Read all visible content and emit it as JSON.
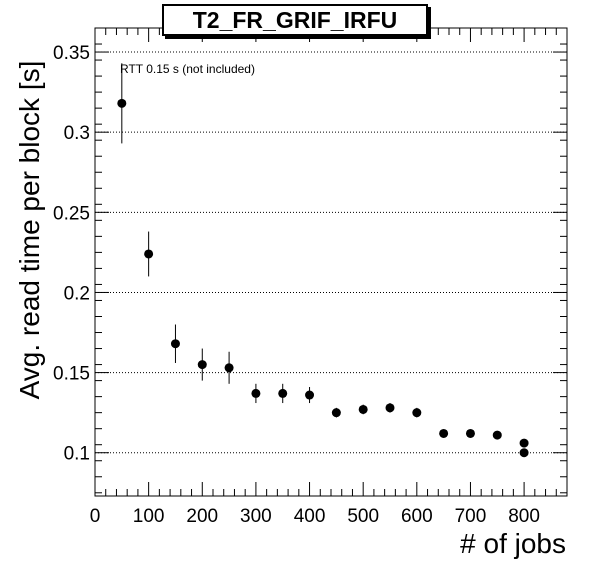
{
  "chart_data": {
    "type": "scatter",
    "title": "T2_FR_GRIF_IRFU",
    "xlabel": "# of jobs",
    "ylabel": "Avg. read time per block [s]",
    "annotation": "RTT 0.15 s (not included)",
    "xlim": [
      0,
      880
    ],
    "ylim": [
      0.073,
      0.365
    ],
    "x_ticks": [
      "0",
      "100",
      "200",
      "300",
      "400",
      "500",
      "600",
      "700",
      "800"
    ],
    "y_ticks": [
      "0.1",
      "0.15",
      "0.2",
      "0.25",
      "0.3",
      "0.35"
    ],
    "grid": "horizontal-dotted",
    "points": [
      {
        "x": 50,
        "y": 0.318,
        "err": 0.025
      },
      {
        "x": 100,
        "y": 0.224,
        "err": 0.014
      },
      {
        "x": 150,
        "y": 0.168,
        "err": 0.012
      },
      {
        "x": 200,
        "y": 0.155,
        "err": 0.01
      },
      {
        "x": 250,
        "y": 0.153,
        "err": 0.01
      },
      {
        "x": 300,
        "y": 0.137,
        "err": 0.006
      },
      {
        "x": 350,
        "y": 0.137,
        "err": 0.006
      },
      {
        "x": 400,
        "y": 0.136,
        "err": 0.005
      },
      {
        "x": 450,
        "y": 0.125,
        "err": 0.003
      },
      {
        "x": 500,
        "y": 0.127,
        "err": 0.003
      },
      {
        "x": 550,
        "y": 0.128,
        "err": 0.003
      },
      {
        "x": 600,
        "y": 0.125,
        "err": 0.003
      },
      {
        "x": 650,
        "y": 0.112,
        "err": 0.002
      },
      {
        "x": 700,
        "y": 0.112,
        "err": 0.002
      },
      {
        "x": 750,
        "y": 0.111,
        "err": 0.002
      },
      {
        "x": 800,
        "y": 0.106,
        "err": 0.002
      },
      {
        "x": 800,
        "y": 0.1,
        "err": 0.002
      }
    ]
  }
}
